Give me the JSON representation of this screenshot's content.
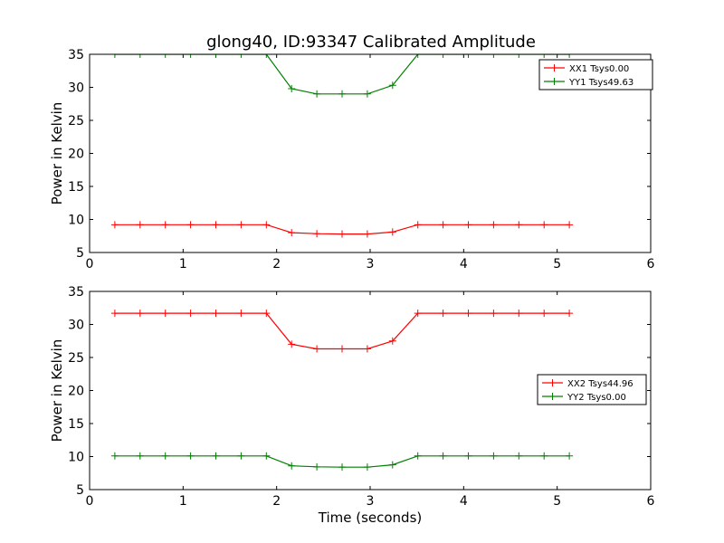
{
  "figure": {
    "title": "glong40, ID:93347 Calibrated Amplitude"
  },
  "chart_data": [
    {
      "type": "line",
      "ylabel": "Power in Kelvin",
      "xlabel": "",
      "xlim": [
        0,
        6
      ],
      "ylim": [
        5,
        35
      ],
      "xticks": [
        0,
        1,
        2,
        3,
        4,
        5,
        6
      ],
      "yticks": [
        5,
        10,
        15,
        20,
        25,
        30,
        35
      ],
      "grid": false,
      "legend_position": "top-right",
      "x": [
        0.27,
        0.54,
        0.81,
        1.08,
        1.35,
        1.62,
        1.89,
        2.16,
        2.43,
        2.7,
        2.97,
        3.24,
        3.51,
        3.78,
        4.05,
        4.32,
        4.59,
        4.86,
        5.13
      ],
      "series": [
        {
          "name": "XX1 Tsys0.00",
          "color": "#ff0000",
          "values": [
            9.2,
            9.2,
            9.2,
            9.2,
            9.2,
            9.2,
            9.2,
            8.0,
            7.85,
            7.8,
            7.8,
            8.1,
            9.2,
            9.2,
            9.2,
            9.2,
            9.2,
            9.2,
            9.2
          ]
        },
        {
          "name": "YY1 Tsys49.63",
          "color": "#008000",
          "values": [
            35.0,
            35.0,
            35.0,
            35.0,
            35.0,
            35.0,
            35.0,
            29.8,
            29.0,
            29.0,
            29.0,
            30.3,
            35.0,
            35.0,
            35.0,
            35.0,
            35.0,
            35.0,
            35.0
          ]
        }
      ]
    },
    {
      "type": "line",
      "ylabel": "Power in Kelvin",
      "xlabel": "Time (seconds)",
      "xlim": [
        0,
        6
      ],
      "ylim": [
        5,
        35
      ],
      "xticks": [
        0,
        1,
        2,
        3,
        4,
        5,
        6
      ],
      "yticks": [
        5,
        10,
        15,
        20,
        25,
        30,
        35
      ],
      "grid": false,
      "legend_position": "center-right",
      "x": [
        0.27,
        0.54,
        0.81,
        1.08,
        1.35,
        1.62,
        1.89,
        2.16,
        2.43,
        2.7,
        2.97,
        3.24,
        3.51,
        3.78,
        4.05,
        4.32,
        4.59,
        4.86,
        5.13
      ],
      "series": [
        {
          "name": "XX2 Tsys44.96",
          "color": "#ff0000",
          "values": [
            31.7,
            31.7,
            31.7,
            31.7,
            31.7,
            31.7,
            31.7,
            27.0,
            26.3,
            26.3,
            26.3,
            27.5,
            31.7,
            31.7,
            31.7,
            31.7,
            31.7,
            31.7,
            31.7
          ]
        },
        {
          "name": "YY2 Tsys0.00",
          "color": "#008000",
          "values": [
            10.1,
            10.1,
            10.1,
            10.1,
            10.1,
            10.1,
            10.1,
            8.6,
            8.45,
            8.4,
            8.4,
            8.75,
            10.1,
            10.1,
            10.1,
            10.1,
            10.1,
            10.1,
            10.1
          ]
        }
      ]
    }
  ]
}
